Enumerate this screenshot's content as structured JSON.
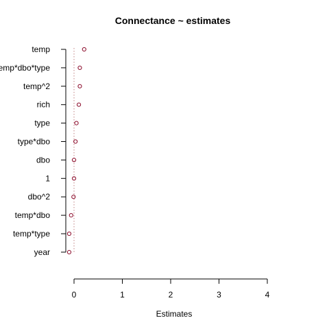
{
  "chart_data": {
    "type": "scatter",
    "title": "Connectance ~ estimates",
    "xlabel": "Estimates",
    "ylabel": "",
    "xlim": [
      -0.1,
      4.0
    ],
    "xticks": [
      0,
      1,
      2,
      3,
      4
    ],
    "xtick_labels": [
      "0",
      "1",
      "2",
      "3",
      "4"
    ],
    "categories": [
      "temp",
      "temp*dbo*type",
      "temp^2",
      "rich",
      "type",
      "type*dbo",
      "dbo",
      "1",
      "dbo^2",
      "temp*dbo",
      "temp*type",
      "year"
    ],
    "values": [
      0.21,
      0.12,
      0.12,
      0.1,
      0.05,
      0.03,
      0.0,
      0.0,
      -0.01,
      -0.06,
      -0.1,
      -0.1
    ],
    "reference_line": 0,
    "point_color": "#8b0a2a",
    "reference_line_color": "#c08080",
    "grid": false,
    "legend": "none"
  }
}
